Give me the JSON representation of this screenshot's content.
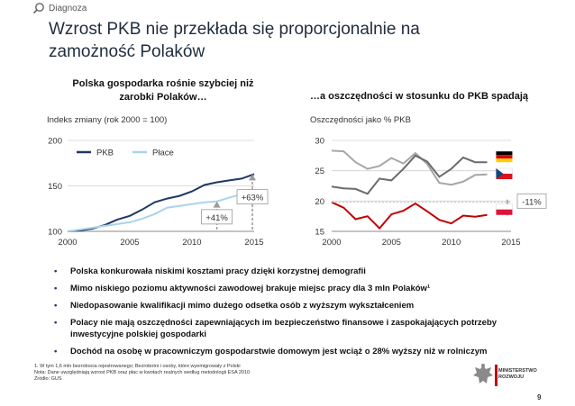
{
  "header": {
    "section_label": "Diagnoza",
    "title_line1": "Wzrost PKB nie przekłada się proporcjonalnie na",
    "title_line2": "zamożność Polaków"
  },
  "left_panel": {
    "heading_line1": "Polska gospodarka rośnie szybciej niż",
    "heading_line2": "zarobki Polaków…",
    "ylabel": "Indeks zmiany (rok 2000 = 100)"
  },
  "right_panel": {
    "heading": "…a oszczędności w stosunku do PKB spadają",
    "ylabel": "Oszczędności jako % PKB"
  },
  "colors": {
    "pkb": "#1f3864",
    "place": "#a9d4ea",
    "germany_savings": "#a6a6a6",
    "czech_savings": "#6b6b6b",
    "poland_savings": "#c00000",
    "gridline": "#d0d0d0",
    "annotation_arrow": "#9a9a9a"
  },
  "chart_data": [
    {
      "type": "line",
      "title": "Polska gospodarka rośnie szybciej niż zarobki Polaków…",
      "xlabel": "",
      "ylabel": "Indeks zmiany (rok 2000 = 100)",
      "xlim": [
        2000,
        2015
      ],
      "ylim": [
        100,
        200
      ],
      "xticks": [
        2000,
        2005,
        2010,
        2015
      ],
      "yticks": [
        100,
        150,
        200
      ],
      "grid": "horizontal",
      "legend": "top-left",
      "x": [
        2000,
        2001,
        2002,
        2003,
        2004,
        2005,
        2006,
        2007,
        2008,
        2009,
        2010,
        2011,
        2012,
        2013,
        2014,
        2015
      ],
      "series": [
        {
          "name": "PKB",
          "color_key": "pkb",
          "values": [
            100,
            101,
            103,
            107,
            113,
            117,
            124,
            132,
            136,
            139,
            144,
            151,
            154,
            156,
            158,
            163
          ]
        },
        {
          "name": "Płace",
          "color_key": "place",
          "values": [
            100,
            102,
            104,
            106,
            108,
            110,
            114,
            119,
            126,
            128,
            130,
            132,
            133,
            137,
            141,
            141
          ]
        }
      ],
      "annotations": [
        {
          "text": "+63%",
          "series": "PKB",
          "at_x": 2015
        },
        {
          "text": "+41%",
          "series": "Płace",
          "at_x": 2012
        }
      ]
    },
    {
      "type": "line",
      "title": "…a oszczędności w stosunku do PKB spadają",
      "xlabel": "",
      "ylabel": "Oszczędności jako % PKB",
      "xlim": [
        2000,
        2015
      ],
      "ylim": [
        15,
        30
      ],
      "xticks": [
        2000,
        2005,
        2010,
        2015
      ],
      "yticks": [
        15,
        20,
        25,
        30
      ],
      "grid": "horizontal",
      "x": [
        2000,
        2001,
        2002,
        2003,
        2004,
        2005,
        2006,
        2007,
        2008,
        2009,
        2010,
        2011,
        2012,
        2013
      ],
      "series": [
        {
          "name": "Niemcy",
          "color_key": "germany_savings",
          "values": [
            28.3,
            28.2,
            26.4,
            25.3,
            25.8,
            27.1,
            26.2,
            27.9,
            26.1,
            23.0,
            22.7,
            23.2,
            24.3,
            24.4
          ]
        },
        {
          "name": "Czechy",
          "color_key": "czech_savings",
          "values": [
            22.4,
            22.1,
            22.0,
            21.2,
            23.7,
            23.4,
            25.3,
            27.5,
            26.5,
            24.0,
            25.3,
            27.2,
            26.4,
            26.4
          ]
        },
        {
          "name": "Polska",
          "color_key": "poland_savings",
          "values": [
            19.8,
            18.9,
            17.0,
            17.5,
            15.5,
            17.8,
            18.4,
            19.6,
            18.3,
            16.9,
            16.3,
            17.6,
            17.4,
            17.7
          ]
        }
      ],
      "flags": [
        "Niemcy",
        "Czechy",
        "Polska"
      ],
      "annotations": [
        {
          "text": "-11%",
          "series": "Polska"
        }
      ]
    }
  ],
  "bullets": [
    "Polska konkurowała niskimi kosztami pracy dzięki korzystnej demografii",
    "Mimo niskiego poziomu aktywności zawodowej brakuje miejsc pracy dla 3 mln Polaków¹",
    "Niedopasowanie kwalifikacji mimo dużego odsetka osób z wyższym wykształceniem",
    "Polacy nie mają oszczędności zapewniających im bezpieczeństwo finansowe i zaspokajających potrzeby inwestycyjne polskiej gospodarki",
    "Dochód na osobę w pracowniczym gospodarstwie domowym jest wciąż o 28% wyższy niż w rolniczym"
  ],
  "notes": [
    "1. W tym 1,6 mln bezrobocia rejestrowanego; Bezrobotni i osoby, które wyemigrowały z Polski",
    "Nota: Dane uwzględniają wzrost PKB oraz płac w kwotach realnych według metodologii ESA 2010",
    "Źródło: GUS"
  ],
  "logo": {
    "line1": "MINISTERSTWO",
    "line2": "ROZWOJU"
  },
  "page_number": "9"
}
